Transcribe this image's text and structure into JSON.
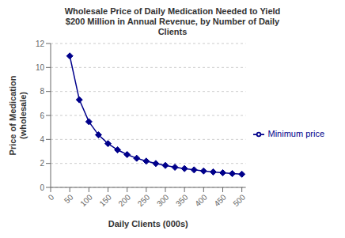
{
  "chart_data": {
    "type": "line",
    "title": "Wholesale Price of Daily Medication Needed to Yield\n$200 Million in Annual Revenue, by Number of Daily\nClients",
    "x_label": "Daily Clients (000s)",
    "y_label": "Price of Medication\n(wholesale)",
    "x": [
      50,
      75,
      100,
      125,
      150,
      175,
      200,
      225,
      250,
      275,
      300,
      325,
      350,
      375,
      400,
      425,
      450,
      475,
      500
    ],
    "series": [
      {
        "name": "Minimum price",
        "color": "#00008B",
        "marker": "diamond",
        "values": [
          10.96,
          7.31,
          5.48,
          4.38,
          3.65,
          3.13,
          2.74,
          2.43,
          2.19,
          1.99,
          1.83,
          1.68,
          1.57,
          1.46,
          1.37,
          1.29,
          1.22,
          1.15,
          1.1
        ]
      }
    ],
    "xlim": [
      0,
      510
    ],
    "ylim": [
      0,
      12
    ],
    "xticks": [
      0,
      50,
      100,
      150,
      200,
      250,
      300,
      350,
      400,
      450,
      500
    ],
    "yticks": [
      0,
      2,
      4,
      6,
      8,
      10,
      12
    ],
    "grid": "y",
    "legend": "right"
  }
}
